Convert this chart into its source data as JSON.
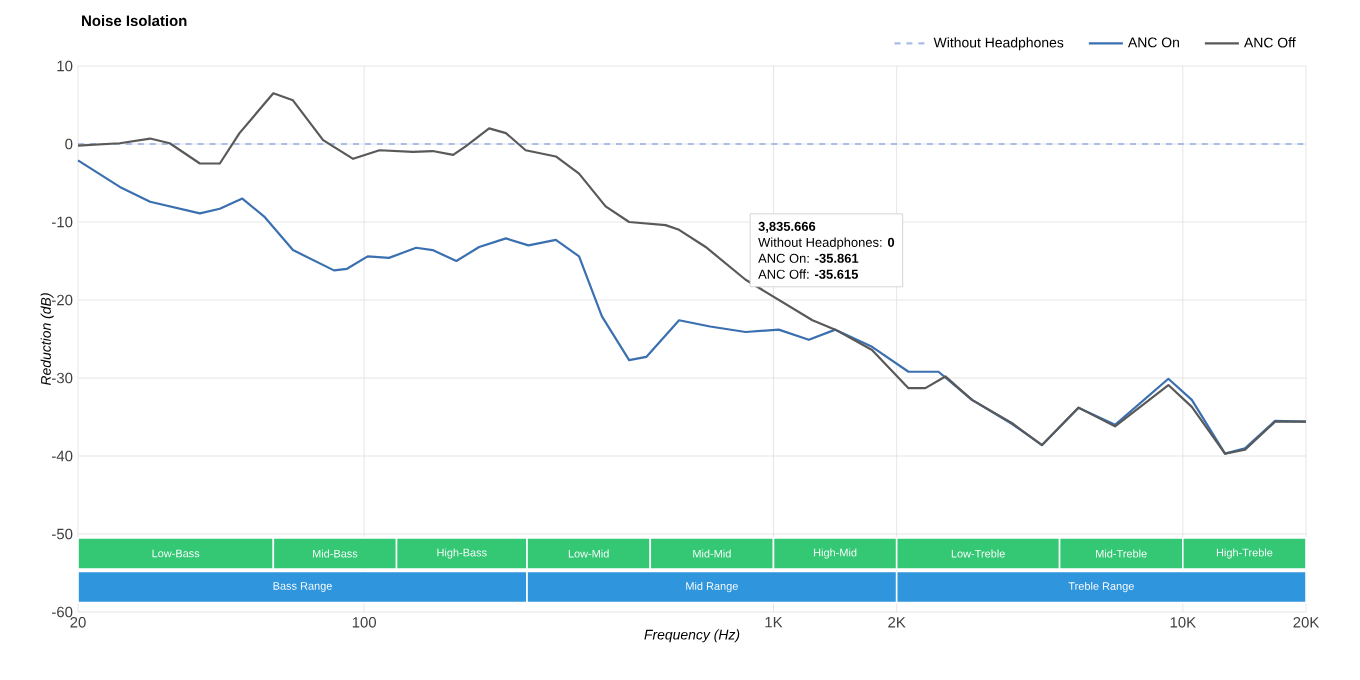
{
  "chart_data": {
    "type": "line",
    "title": "Noise Isolation",
    "xlabel": "Frequency (Hz)",
    "ylabel": "Reduction (dB)",
    "log": "x",
    "grid": true,
    "legend": "top right",
    "marker": "none",
    "xlim": [
      20,
      20000
    ],
    "xticks": [
      20,
      100,
      {
        "value": 1000,
        "label": "1K"
      },
      {
        "value": 2000,
        "label": "2K"
      },
      {
        "value": 10000,
        "label": "10K"
      },
      {
        "value": 20000,
        "label": "20K"
      }
    ],
    "ylim": [
      -60,
      10
    ],
    "yticks": [
      10,
      0,
      -10,
      -20,
      -30,
      -40,
      -50,
      -60
    ],
    "series": [
      {
        "name": "Without Headphones",
        "color": "#a9bde6",
        "line_style": "dashed",
        "x": [
          20,
          20000
        ],
        "values": [
          0,
          0
        ]
      },
      {
        "name": "ANC On",
        "color": "#3a6fb0",
        "x": [
          20,
          25.3,
          30,
          39.7,
          44.4,
          50.4,
          57,
          67,
          84.4,
          90.8,
          102,
          115,
          134,
          147,
          168,
          191,
          222,
          252,
          294,
          335,
          381,
          444,
          489,
          588,
          700,
          855,
          1030,
          1220,
          1416,
          1741,
          2137,
          2530,
          3055,
          3830,
          4530,
          5560,
          6830,
          9220,
          10520,
          12680,
          14190,
          16800,
          20000
        ],
        "values": [
          -2.1,
          -5.5,
          -7.4,
          -8.9,
          -8.3,
          -7.0,
          -9.3,
          -13.6,
          -16.2,
          -16.0,
          -14.4,
          -14.6,
          -13.3,
          -13.6,
          -15.0,
          -13.2,
          -12.1,
          -13.0,
          -12.3,
          -14.4,
          -22.1,
          -27.7,
          -27.3,
          -22.6,
          -23.4,
          -24.1,
          -23.8,
          -25.1,
          -23.8,
          -26.0,
          -29.2,
          -29.2,
          -32.8,
          -35.9,
          -38.6,
          -33.8,
          -36.0,
          -30.1,
          -32.8,
          -39.7,
          -39.0,
          -35.5,
          -35.6
        ]
      },
      {
        "name": "ANC Off",
        "color": "#595959",
        "x": [
          20,
          25.3,
          30,
          33.5,
          39.7,
          44.4,
          49.6,
          60,
          67,
          79.4,
          94,
          109,
          131.6,
          147,
          165,
          177,
          202,
          222,
          248,
          294,
          335,
          389,
          444,
          545,
          588,
          683,
          855,
          1245,
          1416,
          1741,
          2137,
          2350,
          2630,
          3055,
          3830,
          4530,
          5560,
          6830,
          9220,
          10520,
          12680,
          14190,
          16800,
          20000
        ],
        "values": [
          -0.2,
          0.1,
          0.7,
          0.1,
          -2.5,
          -2.5,
          1.4,
          6.5,
          5.6,
          0.5,
          -1.9,
          -0.8,
          -1.0,
          -0.9,
          -1.4,
          -0.3,
          2.0,
          1.4,
          -0.8,
          -1.6,
          -3.8,
          -8.0,
          -10.0,
          -10.4,
          -11.0,
          -13.2,
          -17.4,
          -22.6,
          -23.8,
          -26.4,
          -31.3,
          -31.3,
          -29.8,
          -32.8,
          -35.8,
          -38.6,
          -33.8,
          -36.2,
          -30.9,
          -33.7,
          -39.7,
          -39.2,
          -35.6,
          -35.6
        ]
      }
    ],
    "bands": [
      {
        "axis": "x",
        "from": 20,
        "to": 60,
        "label": "Low-Bass",
        "color": "#34c774"
      },
      {
        "axis": "x",
        "from": 60,
        "to": 120,
        "label": "Mid-Bass",
        "color": "#34c774"
      },
      {
        "axis": "x",
        "from": 120,
        "to": 250,
        "label": "High-Bass",
        "color": "#34c774"
      },
      {
        "axis": "x",
        "from": 250,
        "to": 500,
        "label": "Low-Mid",
        "color": "#34c774"
      },
      {
        "axis": "x",
        "from": 500,
        "to": 1000,
        "label": "Mid-Mid",
        "color": "#34c774"
      },
      {
        "axis": "x",
        "from": 1000,
        "to": 2000,
        "label": "High-Mid",
        "color": "#34c774"
      },
      {
        "axis": "x",
        "from": 2000,
        "to": 5000,
        "label": "Low-Treble",
        "color": "#34c774"
      },
      {
        "axis": "x",
        "from": 5000,
        "to": 10000,
        "label": "Mid-Treble",
        "color": "#34c774"
      },
      {
        "axis": "x",
        "from": 10000,
        "to": 20000,
        "label": "High-Treble",
        "color": "#34c774"
      },
      {
        "axis": "x",
        "from": 20,
        "to": 250,
        "label": "Bass Range",
        "color": "#2f95dd"
      },
      {
        "axis": "x",
        "from": 250,
        "to": 2000,
        "label": "Mid Range",
        "color": "#2f95dd"
      },
      {
        "axis": "x",
        "from": 2000,
        "to": 20000,
        "label": "Treble Range",
        "color": "#2f95dd"
      }
    ],
    "annotations": [
      "**3,835.666**",
      "Without Headphones: **0**",
      "ANC On: **-35.861**",
      "ANC Off: **-35.615**"
    ]
  }
}
